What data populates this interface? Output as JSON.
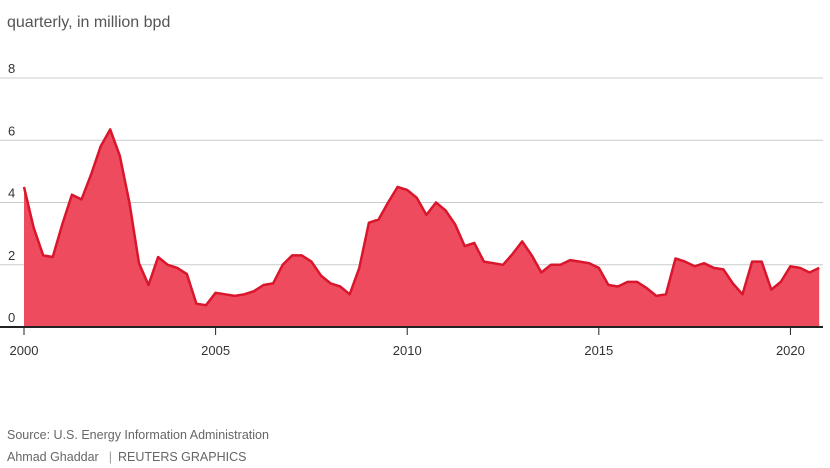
{
  "subtitle": "quarterly, in million bpd",
  "source": "Source: U.S. Energy Information Administration",
  "credit": {
    "author": "Ahmad Ghaddar",
    "separator": "|",
    "outlet": "REUTERS GRAPHICS"
  },
  "colors": {
    "area_fill": "#ee4b5e",
    "line": "#d9162c",
    "grid": "#cccccc",
    "axis": "#222222"
  },
  "chart_data": {
    "type": "area",
    "title": "",
    "subtitle": "quarterly, in million bpd",
    "xlabel": "",
    "ylabel": "",
    "xlim": [
      2000,
      2020.85
    ],
    "ylim": [
      0,
      8
    ],
    "grid": true,
    "legend": "none",
    "yticks": [
      0,
      2,
      4,
      6,
      8
    ],
    "xticks": [
      2000,
      2005,
      2010,
      2015,
      2020
    ],
    "series": [
      {
        "x": [
          2000.0,
          2000.25,
          2000.5,
          2000.75,
          2001.0,
          2001.25,
          2001.5,
          2001.75,
          2002.0,
          2002.25,
          2002.5,
          2002.75,
          2003.0,
          2003.25,
          2003.5,
          2003.75,
          2004.0,
          2004.25,
          2004.5,
          2004.75,
          2005.0,
          2005.25,
          2005.5,
          2005.75,
          2006.0,
          2006.25,
          2006.5,
          2006.75,
          2007.0,
          2007.25,
          2007.5,
          2007.75,
          2008.0,
          2008.25,
          2008.5,
          2008.75,
          2009.0,
          2009.25,
          2009.5,
          2009.75,
          2010.0,
          2010.25,
          2010.5,
          2010.75,
          2011.0,
          2011.25,
          2011.5,
          2011.75,
          2012.0,
          2012.25,
          2012.5,
          2012.75,
          2013.0,
          2013.25,
          2013.5,
          2013.75,
          2014.0,
          2014.25,
          2014.5,
          2014.75,
          2015.0,
          2015.25,
          2015.5,
          2015.75,
          2016.0,
          2016.25,
          2016.5,
          2016.75,
          2017.0,
          2017.25,
          2017.5,
          2017.75,
          2018.0,
          2018.25,
          2018.5,
          2018.75,
          2019.0,
          2019.25,
          2019.5,
          2019.75,
          2020.0,
          2020.25,
          2020.5,
          2020.75
        ],
        "values": [
          4.5,
          3.2,
          2.3,
          2.25,
          3.3,
          4.25,
          4.1,
          4.9,
          5.8,
          6.35,
          5.5,
          4.0,
          2.05,
          1.35,
          2.25,
          2.0,
          1.9,
          1.7,
          0.75,
          0.7,
          1.1,
          1.05,
          1.0,
          1.05,
          1.15,
          1.35,
          1.4,
          2.0,
          2.3,
          2.3,
          2.1,
          1.65,
          1.4,
          1.3,
          1.05,
          1.9,
          3.35,
          3.45,
          4.0,
          4.5,
          4.4,
          4.15,
          3.6,
          4.0,
          3.75,
          3.3,
          2.6,
          2.7,
          2.1,
          2.05,
          2.0,
          2.35,
          2.75,
          2.3,
          1.75,
          2.0,
          2.0,
          2.15,
          2.1,
          2.05,
          1.9,
          1.35,
          1.3,
          1.45,
          1.45,
          1.25,
          1.0,
          1.05,
          2.2,
          2.1,
          1.95,
          2.05,
          1.9,
          1.85,
          1.4,
          1.05,
          2.1,
          2.1,
          1.2,
          1.45,
          1.95,
          1.9,
          1.75,
          1.9
        ]
      }
    ]
  }
}
